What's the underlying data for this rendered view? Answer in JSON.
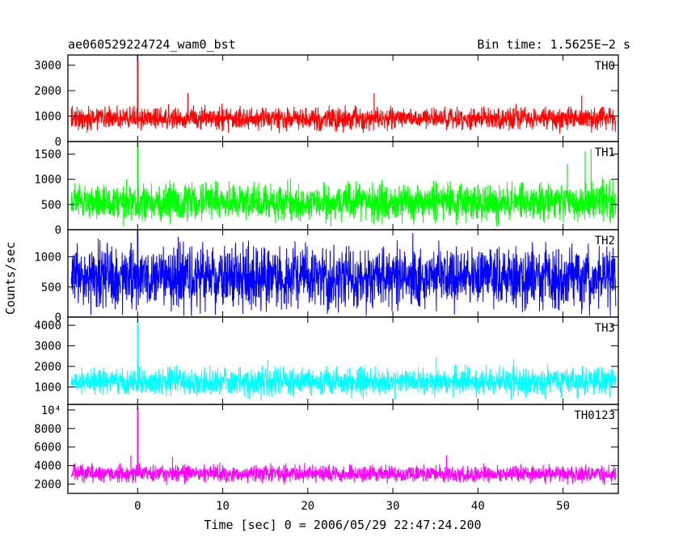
{
  "chart_data": {
    "type": "line",
    "title": "ae060529224724_wam0_bst",
    "bin_time_label": "Bin time: 1.5625E−2 s",
    "xlabel": "Time [sec] 0 = 2006/05/29 22:47:24.200",
    "ylabel": "Counts/sec",
    "xlim": [
      -8.2,
      56.5
    ],
    "x_ticks": [
      0,
      10,
      20,
      30,
      40,
      50
    ],
    "x_tick_labels": [
      "0",
      "10",
      "20",
      "30",
      "40",
      "50"
    ],
    "data_range": [
      -7.8,
      56.2
    ],
    "burst_time": 0.0,
    "bin_time_s": 0.015625,
    "grid": false,
    "series": [
      {
        "name": "TH0",
        "color": "#ff0000",
        "ylim": [
          0,
          3400
        ],
        "y_ticks": [
          0,
          1000,
          2000,
          3000
        ],
        "y_tick_labels": [
          "0",
          "1000",
          "2000",
          "3000"
        ],
        "baseline": 900,
        "min": 300,
        "typical_max": 1500,
        "peak": 3400,
        "secondary_spikes": [
          {
            "t": 5.9,
            "v": 1900
          },
          {
            "t": 27.8,
            "v": 1900
          },
          {
            "t": 52.2,
            "v": 1800
          }
        ]
      },
      {
        "name": "TH1",
        "color": "#00ff00",
        "ylim": [
          0,
          1750
        ],
        "y_ticks": [
          0,
          500,
          1000,
          1500
        ],
        "y_tick_labels": [
          "0",
          "500",
          "1000",
          "1500"
        ],
        "baseline": 550,
        "min": 60,
        "typical_max": 1100,
        "peak": 1750,
        "secondary_spikes": [
          {
            "t": 52.6,
            "v": 1550
          },
          {
            "t": 53.3,
            "v": 1600
          },
          {
            "t": 50.5,
            "v": 1300
          }
        ]
      },
      {
        "name": "TH2",
        "color": "#0000ff",
        "ylim": [
          0,
          1450
        ],
        "y_ticks": [
          0,
          500,
          1000
        ],
        "y_tick_labels": [
          "0",
          "500",
          "1000"
        ],
        "baseline": 650,
        "min": 20,
        "typical_max": 1450,
        "peak": 1450,
        "secondary_spikes": []
      },
      {
        "name": "TH3",
        "color": "#00ffff",
        "ylim": [
          150,
          4400
        ],
        "y_ticks": [
          1000,
          2000,
          3000,
          4000
        ],
        "y_tick_labels": [
          "1000",
          "2000",
          "3000",
          "4000"
        ],
        "baseline": 1250,
        "min": 250,
        "typical_max": 2100,
        "peak": 4300,
        "secondary_spikes": [
          {
            "t": 35.1,
            "v": 2450
          },
          {
            "t": 15.3,
            "v": 2300
          },
          {
            "t": 44.2,
            "v": 2350
          }
        ]
      },
      {
        "name": "TH0123",
        "color": "#ff00ff",
        "ylim": [
          1000,
          10600
        ],
        "y_ticks": [
          2000,
          4000,
          6000,
          8000,
          10000
        ],
        "y_tick_labels": [
          "2000",
          "4000",
          "6000",
          "8000",
          "10⁴"
        ],
        "baseline": 3100,
        "min": 1800,
        "typical_max": 4400,
        "peak": 10400,
        "secondary_spikes": [
          {
            "t": -0.8,
            "v": 5100
          },
          {
            "t": 36.3,
            "v": 5100
          },
          {
            "t": 4.1,
            "v": 4900
          }
        ]
      }
    ]
  }
}
